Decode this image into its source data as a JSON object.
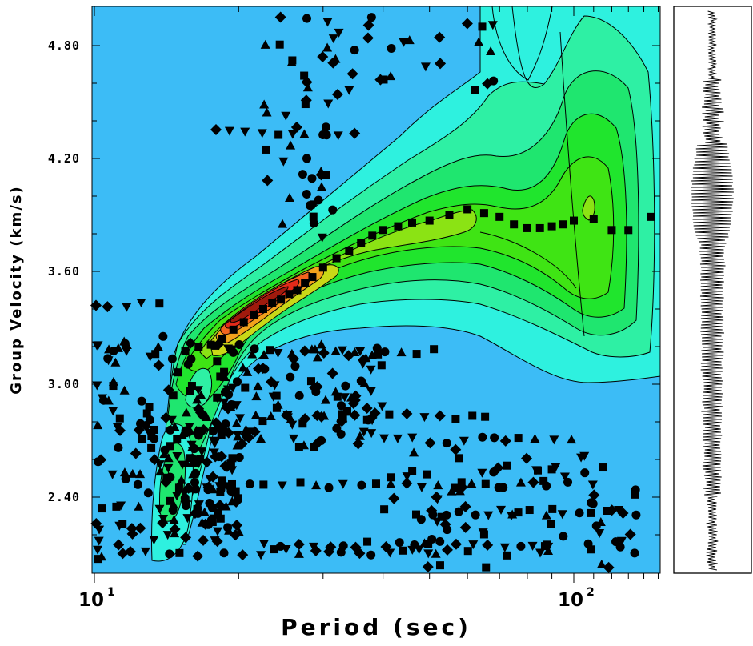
{
  "chart_data": {
    "type": "heatmap",
    "xlabel": "Period (sec)",
    "ylabel": "Group Velocity (km/s)",
    "x_scale": "log",
    "xlim": [
      10,
      160
    ],
    "ylim": [
      2.05,
      5.0
    ],
    "x_ticks": [
      {
        "base": "10",
        "exp": "1",
        "value": 10
      },
      {
        "base": "10",
        "exp": "2",
        "value": 100
      }
    ],
    "y_tick_labels": [
      "4.80",
      "4.20",
      "3.60",
      "3.00",
      "2.40"
    ],
    "y_ticks": [
      4.8,
      4.2,
      3.6,
      3.0,
      2.4
    ],
    "colormap": [
      "#3cbcf6",
      "#2ef1df",
      "#2ef0a4",
      "#1fe66f",
      "#20e52d",
      "#3fe414",
      "#8be314",
      "#c9d817",
      "#f2a21c",
      "#f2641e",
      "#e42a1a",
      "#a01a0d"
    ],
    "ridge_dispersion_curve": {
      "period": [
        16.5,
        17.5,
        18.5,
        19.5,
        20.5,
        21.5,
        22.5,
        23.5,
        24.5,
        25.5,
        26.5,
        27.5,
        28.5,
        30,
        32,
        34,
        36,
        38,
        40,
        43,
        46,
        50,
        55,
        60,
        65,
        70,
        75,
        80,
        85,
        90,
        95,
        100,
        110,
        120,
        130,
        145
      ],
      "velocity": [
        3.2,
        3.21,
        3.24,
        3.29,
        3.33,
        3.37,
        3.4,
        3.43,
        3.45,
        3.48,
        3.5,
        3.54,
        3.57,
        3.62,
        3.67,
        3.71,
        3.75,
        3.79,
        3.82,
        3.84,
        3.86,
        3.87,
        3.9,
        3.93,
        3.91,
        3.89,
        3.85,
        3.83,
        3.83,
        3.84,
        3.85,
        3.87,
        3.88,
        3.82,
        3.82,
        3.89
      ]
    }
  }
}
